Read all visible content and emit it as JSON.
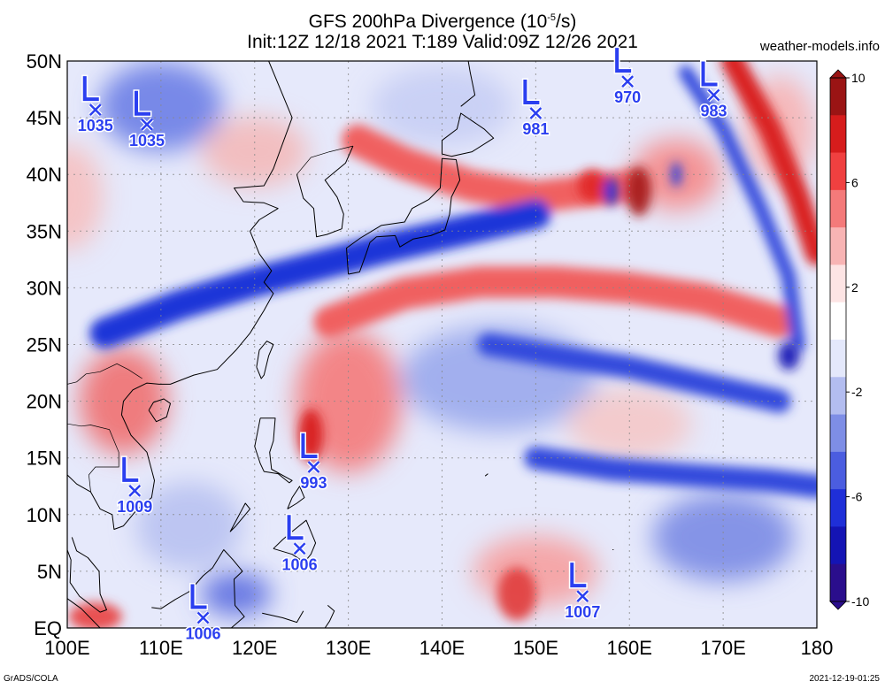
{
  "header": {
    "title_pre": "GFS 200hPa Divergence (10",
    "title_exp": "-5",
    "title_post": "/s)",
    "subtitle": "Init:12Z 12/18 2021 T:189 Valid:09Z 12/26 2021",
    "brand": "weather-models.info"
  },
  "footer": {
    "left": "GrADS/COLA",
    "right": "2021-12-19-01:25"
  },
  "map": {
    "lat_labels": [
      "50N",
      "45N",
      "40N",
      "35N",
      "30N",
      "25N",
      "20N",
      "15N",
      "10N",
      "5N",
      "EQ"
    ],
    "lon_labels": [
      "100E",
      "110E",
      "120E",
      "130E",
      "140E",
      "150E",
      "160E",
      "170E",
      "180"
    ]
  },
  "colorbar": {
    "labels": [
      "10",
      "6",
      "2",
      "-2",
      "-6",
      "-10"
    ],
    "colors": [
      "#9a1414",
      "#d61c1c",
      "#f04040",
      "#f47a7a",
      "#f8b4b4",
      "#fde4e4",
      "#ffffff",
      "#e4e8fb",
      "#b3bdf0",
      "#7e8ee6",
      "#4b5de0",
      "#1f2fd8",
      "#1414b4",
      "#2a0e8c"
    ]
  },
  "lows": [
    {
      "value": "1035",
      "lon": 103.0,
      "lat": 45.7
    },
    {
      "value": "1035",
      "lon": 108.5,
      "lat": 44.4
    },
    {
      "value": "981",
      "lon": 150.0,
      "lat": 45.4
    },
    {
      "value": "970",
      "lon": 159.8,
      "lat": 48.2
    },
    {
      "value": "983",
      "lon": 169.0,
      "lat": 47.0
    },
    {
      "value": "993",
      "lon": 126.3,
      "lat": 14.2
    },
    {
      "value": "1009",
      "lon": 107.2,
      "lat": 12.1
    },
    {
      "value": "1006",
      "lon": 124.8,
      "lat": 7.0
    },
    {
      "value": "1006",
      "lon": 114.5,
      "lat": 0.9
    },
    {
      "value": "1007",
      "lon": 155.0,
      "lat": 2.8
    }
  ],
  "field": {
    "blue_bands": [
      {
        "name": "sw-ne jet band",
        "pts": [
          [
            104,
            26
          ],
          [
            112,
            28.5
          ],
          [
            120,
            30.5
          ],
          [
            127,
            32
          ],
          [
            134,
            33.5
          ],
          [
            142,
            35
          ],
          [
            150,
            36.5
          ]
        ]
      },
      {
        "name": "central pacific band",
        "pts": [
          [
            145,
            25
          ],
          [
            152,
            24
          ],
          [
            160,
            23
          ],
          [
            168,
            21.5
          ],
          [
            176,
            20
          ]
        ]
      },
      {
        "name": "east curved band",
        "pts": [
          [
            166,
            49
          ],
          [
            170,
            44
          ],
          [
            174,
            37
          ],
          [
            177,
            31
          ],
          [
            178,
            25
          ]
        ]
      },
      {
        "name": "south band",
        "pts": [
          [
            150,
            15
          ],
          [
            158,
            14
          ],
          [
            166,
            13.5
          ],
          [
            175,
            13
          ],
          [
            180,
            12.5
          ]
        ]
      }
    ],
    "red_bands": [
      {
        "name": "central pacific ridge",
        "pts": [
          [
            128,
            27
          ],
          [
            136,
            29.5
          ],
          [
            144,
            30.5
          ],
          [
            152,
            30.5
          ],
          [
            160,
            30
          ],
          [
            168,
            29
          ],
          [
            176,
            27
          ]
        ]
      },
      {
        "name": "far east ridge",
        "pts": [
          [
            171,
            50
          ],
          [
            175,
            44
          ],
          [
            178,
            38
          ],
          [
            180,
            33
          ]
        ]
      },
      {
        "name": "north red",
        "pts": [
          [
            131,
            43
          ],
          [
            136,
            41
          ],
          [
            143,
            39
          ],
          [
            150,
            38
          ],
          [
            160,
            39
          ]
        ]
      }
    ]
  }
}
